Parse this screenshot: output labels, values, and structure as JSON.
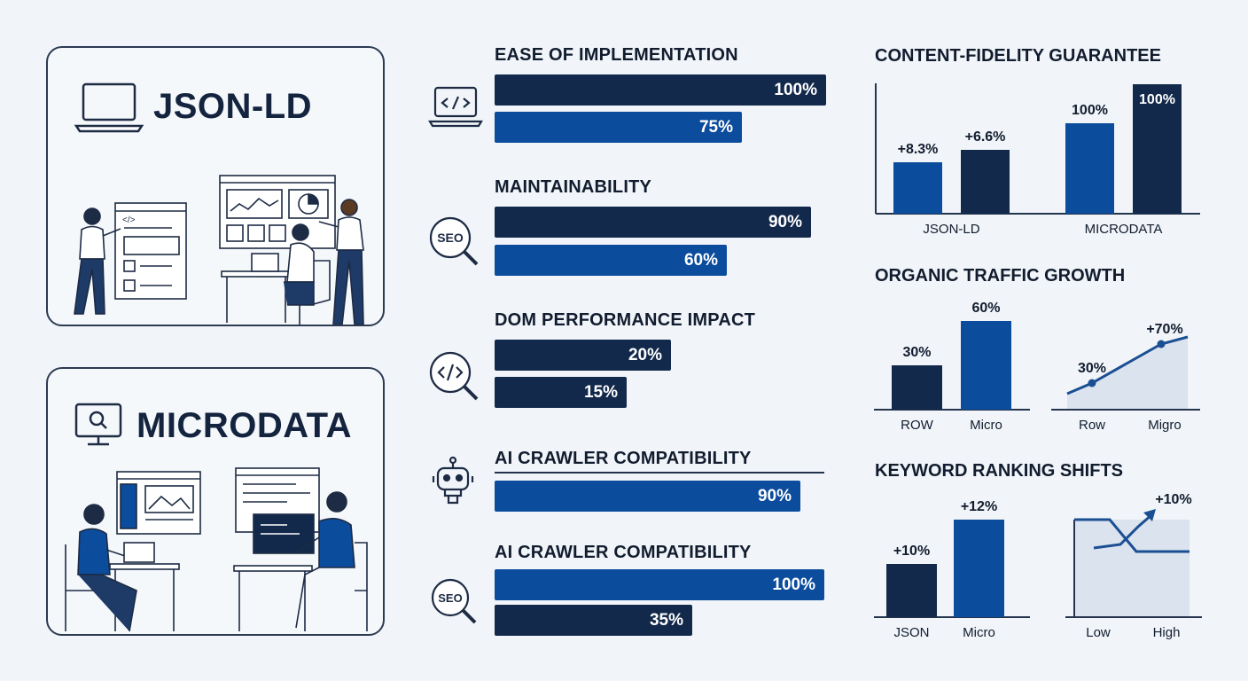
{
  "cards": {
    "json_ld": {
      "title": "JSON-LD",
      "icon": "laptop-code-icon"
    },
    "microdata": {
      "title": "MICRODATA",
      "icon": "monitor-search-icon"
    }
  },
  "metrics": [
    {
      "title": "EASE OF IMPLEMENTATION",
      "icon": "laptop-code-icon",
      "bars": [
        {
          "value": 100,
          "label": "100%",
          "color": "#13294b"
        },
        {
          "value": 75,
          "label": "75%",
          "color": "#0b4c9c"
        }
      ]
    },
    {
      "title": "MAINTAINABILITY",
      "icon": "seo-magnifier-icon",
      "icon_text": "SEO",
      "bars": [
        {
          "value": 90,
          "label": "90%",
          "color": "#13294b"
        },
        {
          "value": 60,
          "label": "60%",
          "color": "#0b4c9c"
        }
      ]
    },
    {
      "title": "DOM PERFORMANCE IMPACT",
      "icon": "code-magnifier-icon",
      "bars": [
        {
          "value": 20,
          "label": "20%",
          "color": "#13294b"
        },
        {
          "value": 15,
          "label": "15%",
          "color": "#13294b"
        }
      ]
    },
    {
      "title": "AI CRAWLER COMPATIBILITY",
      "icon": "robot-icon",
      "bars": [
        {
          "value": 90,
          "label": "90%",
          "color": "#0b4c9c"
        }
      ]
    },
    {
      "title": "AI CRAWLER COMPATIBILITY",
      "icon": "seo-magnifier-icon",
      "icon_text": "SEO",
      "bars": [
        {
          "value": 100,
          "label": "100%",
          "color": "#0b4c9c"
        },
        {
          "value": 35,
          "label": "35%",
          "color": "#13294b"
        }
      ]
    }
  ],
  "right_titles": {
    "fidelity": "CONTENT-FIDELITY GUARANTEE",
    "traffic": "ORGANIC TRAFFIC GROWTH",
    "keyword": "KEYWORD RANKING SHIFTS"
  },
  "colors": {
    "navy": "#13294b",
    "blue": "#0b4c9c",
    "area_fill": "#dbe3ee",
    "line": "#1b4f93"
  },
  "chart_data": [
    {
      "type": "bar",
      "title": "CONTENT-FIDELITY GUARANTEE",
      "categories": [
        "JSON-LD",
        "MICRODATA"
      ],
      "series": [
        {
          "values": [
            8.3,
            100
          ],
          "labels": [
            "+8.3%",
            "100%"
          ],
          "colors": [
            "#0b4c9c",
            "#0b4c9c"
          ]
        },
        {
          "values": [
            6.6,
            100
          ],
          "labels": [
            "+6.6%",
            "100%"
          ],
          "colors": [
            "#13294b",
            "#13294b"
          ]
        }
      ]
    },
    {
      "type": "bar",
      "title": "ORGANIC TRAFFIC GROWTH",
      "categories": [
        "ROW",
        "Micro"
      ],
      "values": [
        30,
        60
      ],
      "labels": [
        "30%",
        "60%"
      ],
      "colors": [
        "#13294b",
        "#0b4c9c"
      ]
    },
    {
      "type": "area",
      "categories": [
        "Row",
        "Migro"
      ],
      "values": [
        30,
        70
      ],
      "labels": [
        "30%",
        "+70%"
      ]
    },
    {
      "type": "bar",
      "title": "KEYWORD RANKING SHIFTS",
      "categories": [
        "JSON",
        "Micro"
      ],
      "values": [
        10,
        12
      ],
      "labels": [
        "+10%",
        "+12%"
      ],
      "colors": [
        "#13294b",
        "#0b4c9c"
      ]
    },
    {
      "type": "line",
      "categories": [
        "Low",
        "High"
      ],
      "series": [
        {
          "values": [
            6,
            10
          ],
          "label": "+10%"
        },
        {
          "values": [
            8,
            5
          ]
        }
      ]
    }
  ]
}
